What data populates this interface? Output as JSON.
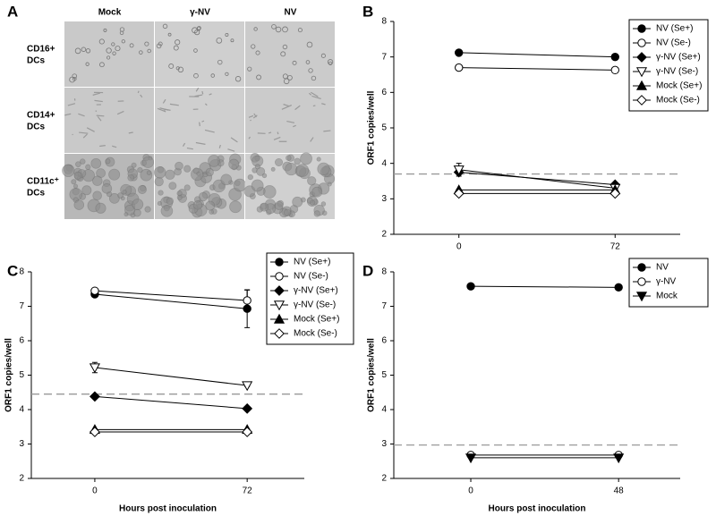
{
  "panel_a": {
    "label": "A",
    "columns": [
      "Mock",
      "γ-NV",
      "NV"
    ],
    "rows": [
      [
        "CD16+",
        "DCs"
      ],
      [
        "CD14+",
        "DCs"
      ],
      [
        "CD11c⁺",
        "DCs"
      ]
    ]
  },
  "chart_data": [
    {
      "type": "line",
      "label": "B",
      "ylabel": "ORF1 copies/well",
      "x": [
        0,
        72
      ],
      "xlim": [
        -30,
        102
      ],
      "xticks": [
        0,
        72
      ],
      "ylim": [
        2,
        8
      ],
      "yticks": [
        2,
        3,
        4,
        5,
        6,
        7,
        8
      ],
      "reference_line": 3.7,
      "legend": "upper right",
      "series": [
        {
          "name": "NV (Se+)",
          "color": "#000000",
          "marker": "circle",
          "filled": true,
          "values": [
            7.12,
            7.0
          ],
          "errors": [
            0.05,
            0.04
          ]
        },
        {
          "name": "NV (Se-)",
          "color": "#000000",
          "marker": "circle",
          "filled": false,
          "values": [
            6.7,
            6.63
          ],
          "errors": [
            0.03,
            0.06
          ]
        },
        {
          "name": "γ-NV (Se+)",
          "color": "#000000",
          "marker": "diamond",
          "filled": true,
          "values": [
            3.75,
            3.4
          ],
          "errors": [
            0.03,
            0.03
          ]
        },
        {
          "name": "γ-NV (Se-)",
          "color": "#000000",
          "marker": "triangle-down",
          "filled": false,
          "values": [
            3.82,
            3.3
          ],
          "errors": [
            0.18,
            0.04
          ]
        },
        {
          "name": "Mock (Se+)",
          "color": "#000000",
          "marker": "triangle-up",
          "filled": true,
          "values": [
            3.25,
            3.25
          ],
          "errors": [
            0.02,
            0.02
          ]
        },
        {
          "name": "Mock (Se-)",
          "color": "#000000",
          "marker": "diamond",
          "filled": false,
          "values": [
            3.15,
            3.15
          ],
          "errors": [
            0.02,
            0.02
          ]
        }
      ]
    },
    {
      "type": "line",
      "label": "C",
      "ylabel": "ORF1 copies/well",
      "xlabel": "Hours post inoculation",
      "x": [
        0,
        72
      ],
      "xlim": [
        -30,
        99
      ],
      "xticks": [
        0,
        72
      ],
      "ylim": [
        2,
        8
      ],
      "yticks": [
        2,
        3,
        4,
        5,
        6,
        7,
        8
      ],
      "reference_line": 4.45,
      "legend": "upper right",
      "series": [
        {
          "name": "NV (Se+)",
          "color": "#000000",
          "marker": "circle",
          "filled": true,
          "values": [
            7.35,
            6.93
          ],
          "errors": [
            0.06,
            0.55
          ]
        },
        {
          "name": "NV (Se-)",
          "color": "#000000",
          "marker": "circle",
          "filled": false,
          "values": [
            7.45,
            7.17
          ],
          "errors": [
            0.03,
            0.3
          ]
        },
        {
          "name": "γ-NV (Se+)",
          "color": "#000000",
          "marker": "diamond",
          "filled": true,
          "values": [
            4.38,
            4.03
          ],
          "errors": [
            0.06,
            0.06
          ]
        },
        {
          "name": "γ-NV (Se-)",
          "color": "#000000",
          "marker": "triangle-down",
          "filled": false,
          "values": [
            5.22,
            4.7
          ],
          "errors": [
            0.15,
            0.03
          ]
        },
        {
          "name": "Mock (Se+)",
          "color": "#000000",
          "marker": "triangle-up",
          "filled": true,
          "values": [
            3.42,
            3.42
          ],
          "errors": [
            0.02,
            0.02
          ]
        },
        {
          "name": "Mock (Se-)",
          "color": "#000000",
          "marker": "diamond",
          "filled": false,
          "values": [
            3.35,
            3.35
          ],
          "errors": [
            0.02,
            0.02
          ]
        }
      ]
    },
    {
      "type": "line",
      "label": "D",
      "ylabel": "ORF1 copies/well",
      "xlabel": "Hours post inoculation",
      "x": [
        0,
        48
      ],
      "xlim": [
        -25,
        68
      ],
      "xticks": [
        0,
        48
      ],
      "ylim": [
        2,
        8
      ],
      "yticks": [
        2,
        3,
        4,
        5,
        6,
        7,
        8
      ],
      "reference_line": 2.97,
      "legend": "upper right",
      "series": [
        {
          "name": "NV",
          "color": "#000000",
          "marker": "circle",
          "filled": true,
          "values": [
            7.58,
            7.55
          ]
        },
        {
          "name": "γ-NV",
          "color": "#000000",
          "marker": "circle",
          "filled": false,
          "values": [
            2.68,
            2.68
          ]
        },
        {
          "name": "Mock",
          "color": "#000000",
          "marker": "triangle-down",
          "filled": true,
          "values": [
            2.6,
            2.6
          ]
        }
      ]
    }
  ]
}
